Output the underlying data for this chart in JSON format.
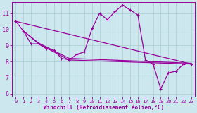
{
  "background_color": "#cce8ee",
  "grid_color": "#aaccd4",
  "line_color": "#990099",
  "xlabel": "Windchill (Refroidissement éolien,°C)",
  "xlim": [
    -0.5,
    23.5
  ],
  "ylim": [
    5.8,
    11.7
  ],
  "yticks": [
    6,
    7,
    8,
    9,
    10,
    11
  ],
  "xticks": [
    0,
    1,
    2,
    3,
    4,
    5,
    6,
    7,
    8,
    9,
    10,
    11,
    12,
    13,
    14,
    15,
    16,
    17,
    18,
    19,
    20,
    21,
    22,
    23
  ],
  "lines": [
    {
      "x": [
        0,
        1,
        2,
        3,
        4,
        5,
        6,
        7,
        8,
        9,
        10,
        11,
        12,
        13,
        14,
        15,
        16,
        17,
        18,
        19,
        20,
        21,
        22
      ],
      "y": [
        10.5,
        9.9,
        9.1,
        9.1,
        8.8,
        8.7,
        8.2,
        8.1,
        8.45,
        8.6,
        10.05,
        11.0,
        10.6,
        11.1,
        11.5,
        11.2,
        10.9,
        8.1,
        7.85,
        6.3,
        7.3,
        7.4,
        7.85
      ],
      "marker": true
    },
    {
      "x": [
        0,
        23
      ],
      "y": [
        10.5,
        7.85
      ],
      "marker": true
    },
    {
      "x": [
        1,
        3,
        7,
        23
      ],
      "y": [
        9.9,
        9.1,
        8.1,
        7.85
      ],
      "marker": false
    },
    {
      "x": [
        1,
        3,
        7,
        23
      ],
      "y": [
        9.9,
        9.15,
        8.2,
        7.9
      ],
      "marker": false
    }
  ],
  "linewidth": 0.9,
  "markersize": 2.5,
  "tick_fontsize_x": 5.0,
  "tick_fontsize_y": 6.0,
  "xlabel_fontsize": 5.5
}
